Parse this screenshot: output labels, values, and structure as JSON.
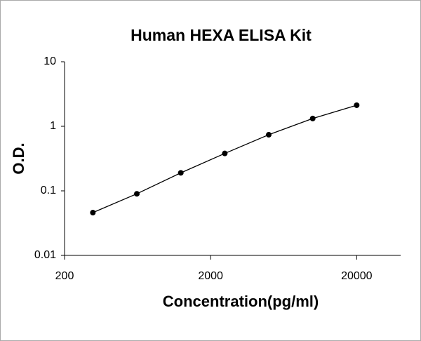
{
  "chart_data": {
    "type": "scatter",
    "title": "Human HEXA ELISA Kit",
    "x_label": "Concentration(pg/ml)",
    "y_label": "O.D.",
    "x": [
      312.5,
      625,
      1250,
      2500,
      5000,
      10000,
      20000
    ],
    "values": [
      0.046,
      0.09,
      0.19,
      0.38,
      0.74,
      1.32,
      2.12
    ],
    "color": "#000000",
    "xlog": true,
    "ylog": true,
    "xlim": [
      200,
      40000
    ],
    "ylim": [
      0.01,
      10
    ],
    "xticks": [
      200,
      2000,
      20000
    ],
    "yticks": [
      0.01,
      0.1,
      1,
      10
    ]
  }
}
